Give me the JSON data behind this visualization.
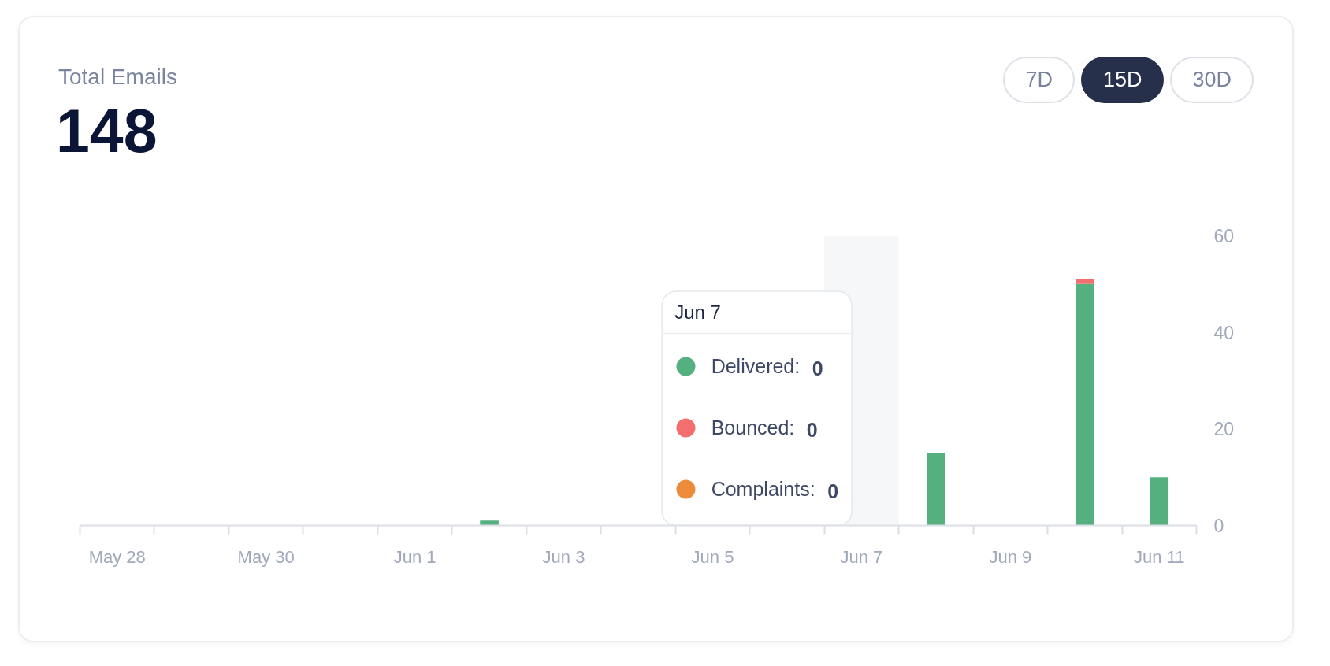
{
  "chart_data": {
    "type": "bar",
    "stacked": true,
    "title": "Total Emails",
    "subtitle": "148",
    "categories": [
      "May 28",
      null,
      "May 30",
      null,
      "Jun 1",
      null,
      "Jun 3",
      null,
      "Jun 5",
      null,
      "Jun 7",
      null,
      "Jun 9",
      null,
      "Jun 11"
    ],
    "series": [
      {
        "name": "Delivered:",
        "color": "#55b080",
        "values": [
          0,
          0,
          0,
          0,
          0,
          1,
          0,
          0,
          0,
          0,
          0,
          15,
          0,
          50,
          10
        ]
      },
      {
        "name": "Bounced:",
        "color": "#f36f6f",
        "values": [
          0,
          0,
          0,
          0,
          0,
          0,
          0,
          0,
          0,
          0,
          0,
          0,
          0,
          1,
          0
        ]
      },
      {
        "name": "Complaints:",
        "color": "#ec8b3a",
        "values": [
          0,
          0,
          0,
          0,
          0,
          0,
          0,
          0,
          0,
          0,
          0,
          0,
          0,
          0,
          0
        ]
      }
    ],
    "ylim": [
      0,
      60
    ],
    "yticks": [
      0,
      20,
      40,
      60
    ],
    "grid": false,
    "legend": "bottom",
    "legend_title": "Jun 7",
    "bands": [
      {
        "axis": "x",
        "from": "Jun 7",
        "to": "Jun 7",
        "color": "#f6f7f9"
      }
    ],
    "annotations": [
      "7D",
      "15D",
      "30D",
      "0",
      "0",
      "0"
    ]
  }
}
